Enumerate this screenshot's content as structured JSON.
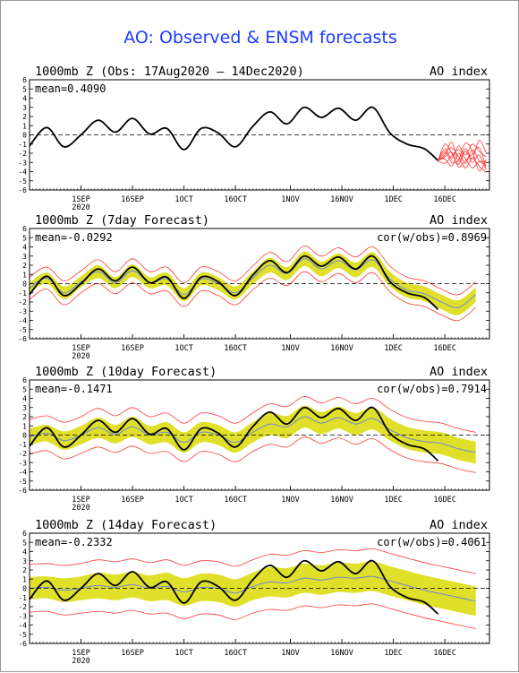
{
  "title": "AO: Observed & ENSM forecasts",
  "colors": {
    "title": "#1f3cff",
    "observed": "#000000",
    "mean": "#6a8ad4",
    "spread": "#e0e02a",
    "members": "#ff3a3a"
  },
  "x_ticks": [
    "1SEP",
    "16SEP",
    "1OCT",
    "16OCT",
    "1NOV",
    "16NOV",
    "1DEC",
    "16DEC"
  ],
  "year_label": "2020",
  "panels": [
    {
      "title": "1000mb Z (Obs: 17Aug2020 – 14Dec2020)",
      "right": "AO index",
      "mean_label": "mean=0.4090",
      "cor_label": ""
    },
    {
      "title": "1000mb Z (7day Forecast)",
      "right": "AO index",
      "mean_label": "mean=-0.0292",
      "cor_label": "cor(w/obs)=0.8969"
    },
    {
      "title": "1000mb Z (10day Forecast)",
      "right": "AO index",
      "mean_label": "mean=-0.1471",
      "cor_label": "cor(w/obs)=0.7914"
    },
    {
      "title": "1000mb Z (14day Forecast)",
      "right": "AO index",
      "mean_label": "mean=-0.2332",
      "cor_label": "cor(w/obs)=0.4061"
    }
  ],
  "chart_data": {
    "type": "line",
    "ylim": [
      -6,
      6
    ],
    "yticks": [
      6,
      5,
      4,
      3,
      2,
      1,
      0,
      -1,
      -2,
      -3,
      -4,
      -5,
      -6
    ],
    "x_dates": [
      "2020-08-17",
      "2020-08-22",
      "2020-08-27",
      "2020-09-01",
      "2020-09-06",
      "2020-09-11",
      "2020-09-16",
      "2020-09-21",
      "2020-09-26",
      "2020-10-01",
      "2020-10-06",
      "2020-10-11",
      "2020-10-16",
      "2020-10-21",
      "2020-10-26",
      "2020-10-31",
      "2020-11-05",
      "2020-11-10",
      "2020-11-15",
      "2020-11-20",
      "2020-11-25",
      "2020-11-30",
      "2020-12-05",
      "2020-12-10",
      "2020-12-14"
    ],
    "observed": [
      -1.2,
      0.8,
      -1.3,
      0.0,
      1.6,
      0.3,
      1.8,
      0.1,
      0.7,
      -1.6,
      0.7,
      0.2,
      -1.3,
      0.9,
      2.5,
      1.2,
      3.0,
      1.9,
      2.9,
      1.6,
      3.0,
      0.2,
      -1.0,
      -1.5,
      -2.8
    ],
    "forecast_x": [
      "2020-12-14",
      "2020-12-16",
      "2020-12-18",
      "2020-12-20",
      "2020-12-22",
      "2020-12-24",
      "2020-12-26",
      "2020-12-28"
    ],
    "forecast_members": [
      [
        -2.8,
        -1.5,
        -2.6,
        -1.2,
        -2.2,
        -1.0,
        -1.8,
        -2.4
      ],
      [
        -2.8,
        -2.2,
        -0.8,
        -2.9,
        -1.5,
        -2.6,
        -0.6,
        -1.9
      ],
      [
        -2.8,
        -2.6,
        -3.4,
        -2.0,
        -3.1,
        -1.6,
        -2.8,
        -3.3
      ],
      [
        -2.8,
        -1.0,
        -2.0,
        -3.2,
        -1.8,
        -3.0,
        -2.2,
        -3.8
      ],
      [
        -2.8,
        -2.0,
        -1.4,
        -2.4,
        -3.6,
        -2.5,
        -3.4,
        -4.1
      ],
      [
        -2.8,
        -3.1,
        -2.3,
        -1.6,
        -2.6,
        -3.6,
        -2.9,
        -3.0
      ],
      [
        -2.8,
        -1.8,
        -3.0,
        -2.7,
        -0.9,
        -1.8,
        -3.9,
        -2.7
      ],
      [
        -2.8,
        -2.4,
        -1.9,
        -3.5,
        -2.8,
        -2.1,
        -1.4,
        -3.5
      ]
    ],
    "panels": [
      {
        "lead_days": 7,
        "ens_mean": [
          -0.5,
          0.6,
          -1.0,
          0.2,
          1.3,
          0.1,
          1.4,
          0.1,
          0.5,
          -1.2,
          0.5,
          0.0,
          -1.0,
          0.6,
          2.0,
          1.1,
          2.7,
          1.6,
          2.5,
          1.5,
          2.6,
          0.5,
          -0.7,
          -1.1,
          -2.0,
          -2.6,
          -1.2
        ],
        "spread": [
          0.6,
          0.6,
          0.7,
          0.6,
          0.7,
          0.6,
          0.7,
          0.6,
          0.7,
          0.7,
          0.7,
          0.7,
          0.7,
          0.7,
          0.8,
          0.7,
          0.8,
          0.8,
          0.8,
          0.8,
          0.8,
          0.8,
          0.8,
          0.8,
          0.8,
          0.8,
          0.8
        ],
        "envelope": 1.2
      },
      {
        "lead_days": 10,
        "ens_mean": [
          -0.2,
          0.2,
          -0.6,
          0.0,
          0.8,
          0.1,
          0.9,
          0.0,
          0.3,
          -0.8,
          0.3,
          0.0,
          -0.8,
          0.3,
          1.2,
          0.9,
          2.0,
          1.3,
          1.9,
          1.2,
          1.8,
          0.6,
          -0.3,
          -0.7,
          -0.9,
          -1.5,
          -1.9
        ],
        "spread": [
          0.9,
          0.9,
          1.0,
          1.0,
          1.1,
          1.0,
          1.1,
          1.0,
          1.1,
          1.1,
          1.1,
          1.1,
          1.1,
          1.1,
          1.2,
          1.2,
          1.2,
          1.2,
          1.2,
          1.2,
          1.2,
          1.2,
          1.2,
          1.2,
          1.2,
          1.2,
          1.2
        ],
        "envelope": 2.0
      },
      {
        "lead_days": 14,
        "ens_mean": [
          0.0,
          0.1,
          -0.2,
          0.0,
          0.3,
          0.1,
          0.4,
          0.0,
          0.2,
          -0.4,
          0.1,
          0.0,
          -0.5,
          0.2,
          0.7,
          0.6,
          1.1,
          0.9,
          1.2,
          1.1,
          1.3,
          0.8,
          0.3,
          -0.2,
          -0.6,
          -1.0,
          -1.4
        ],
        "spread": [
          1.2,
          1.2,
          1.3,
          1.3,
          1.4,
          1.4,
          1.4,
          1.4,
          1.5,
          1.5,
          1.5,
          1.5,
          1.5,
          1.5,
          1.6,
          1.6,
          1.6,
          1.6,
          1.6,
          1.6,
          1.6,
          1.6,
          1.6,
          1.6,
          1.6,
          1.6,
          1.6
        ],
        "envelope": 2.8
      }
    ]
  }
}
